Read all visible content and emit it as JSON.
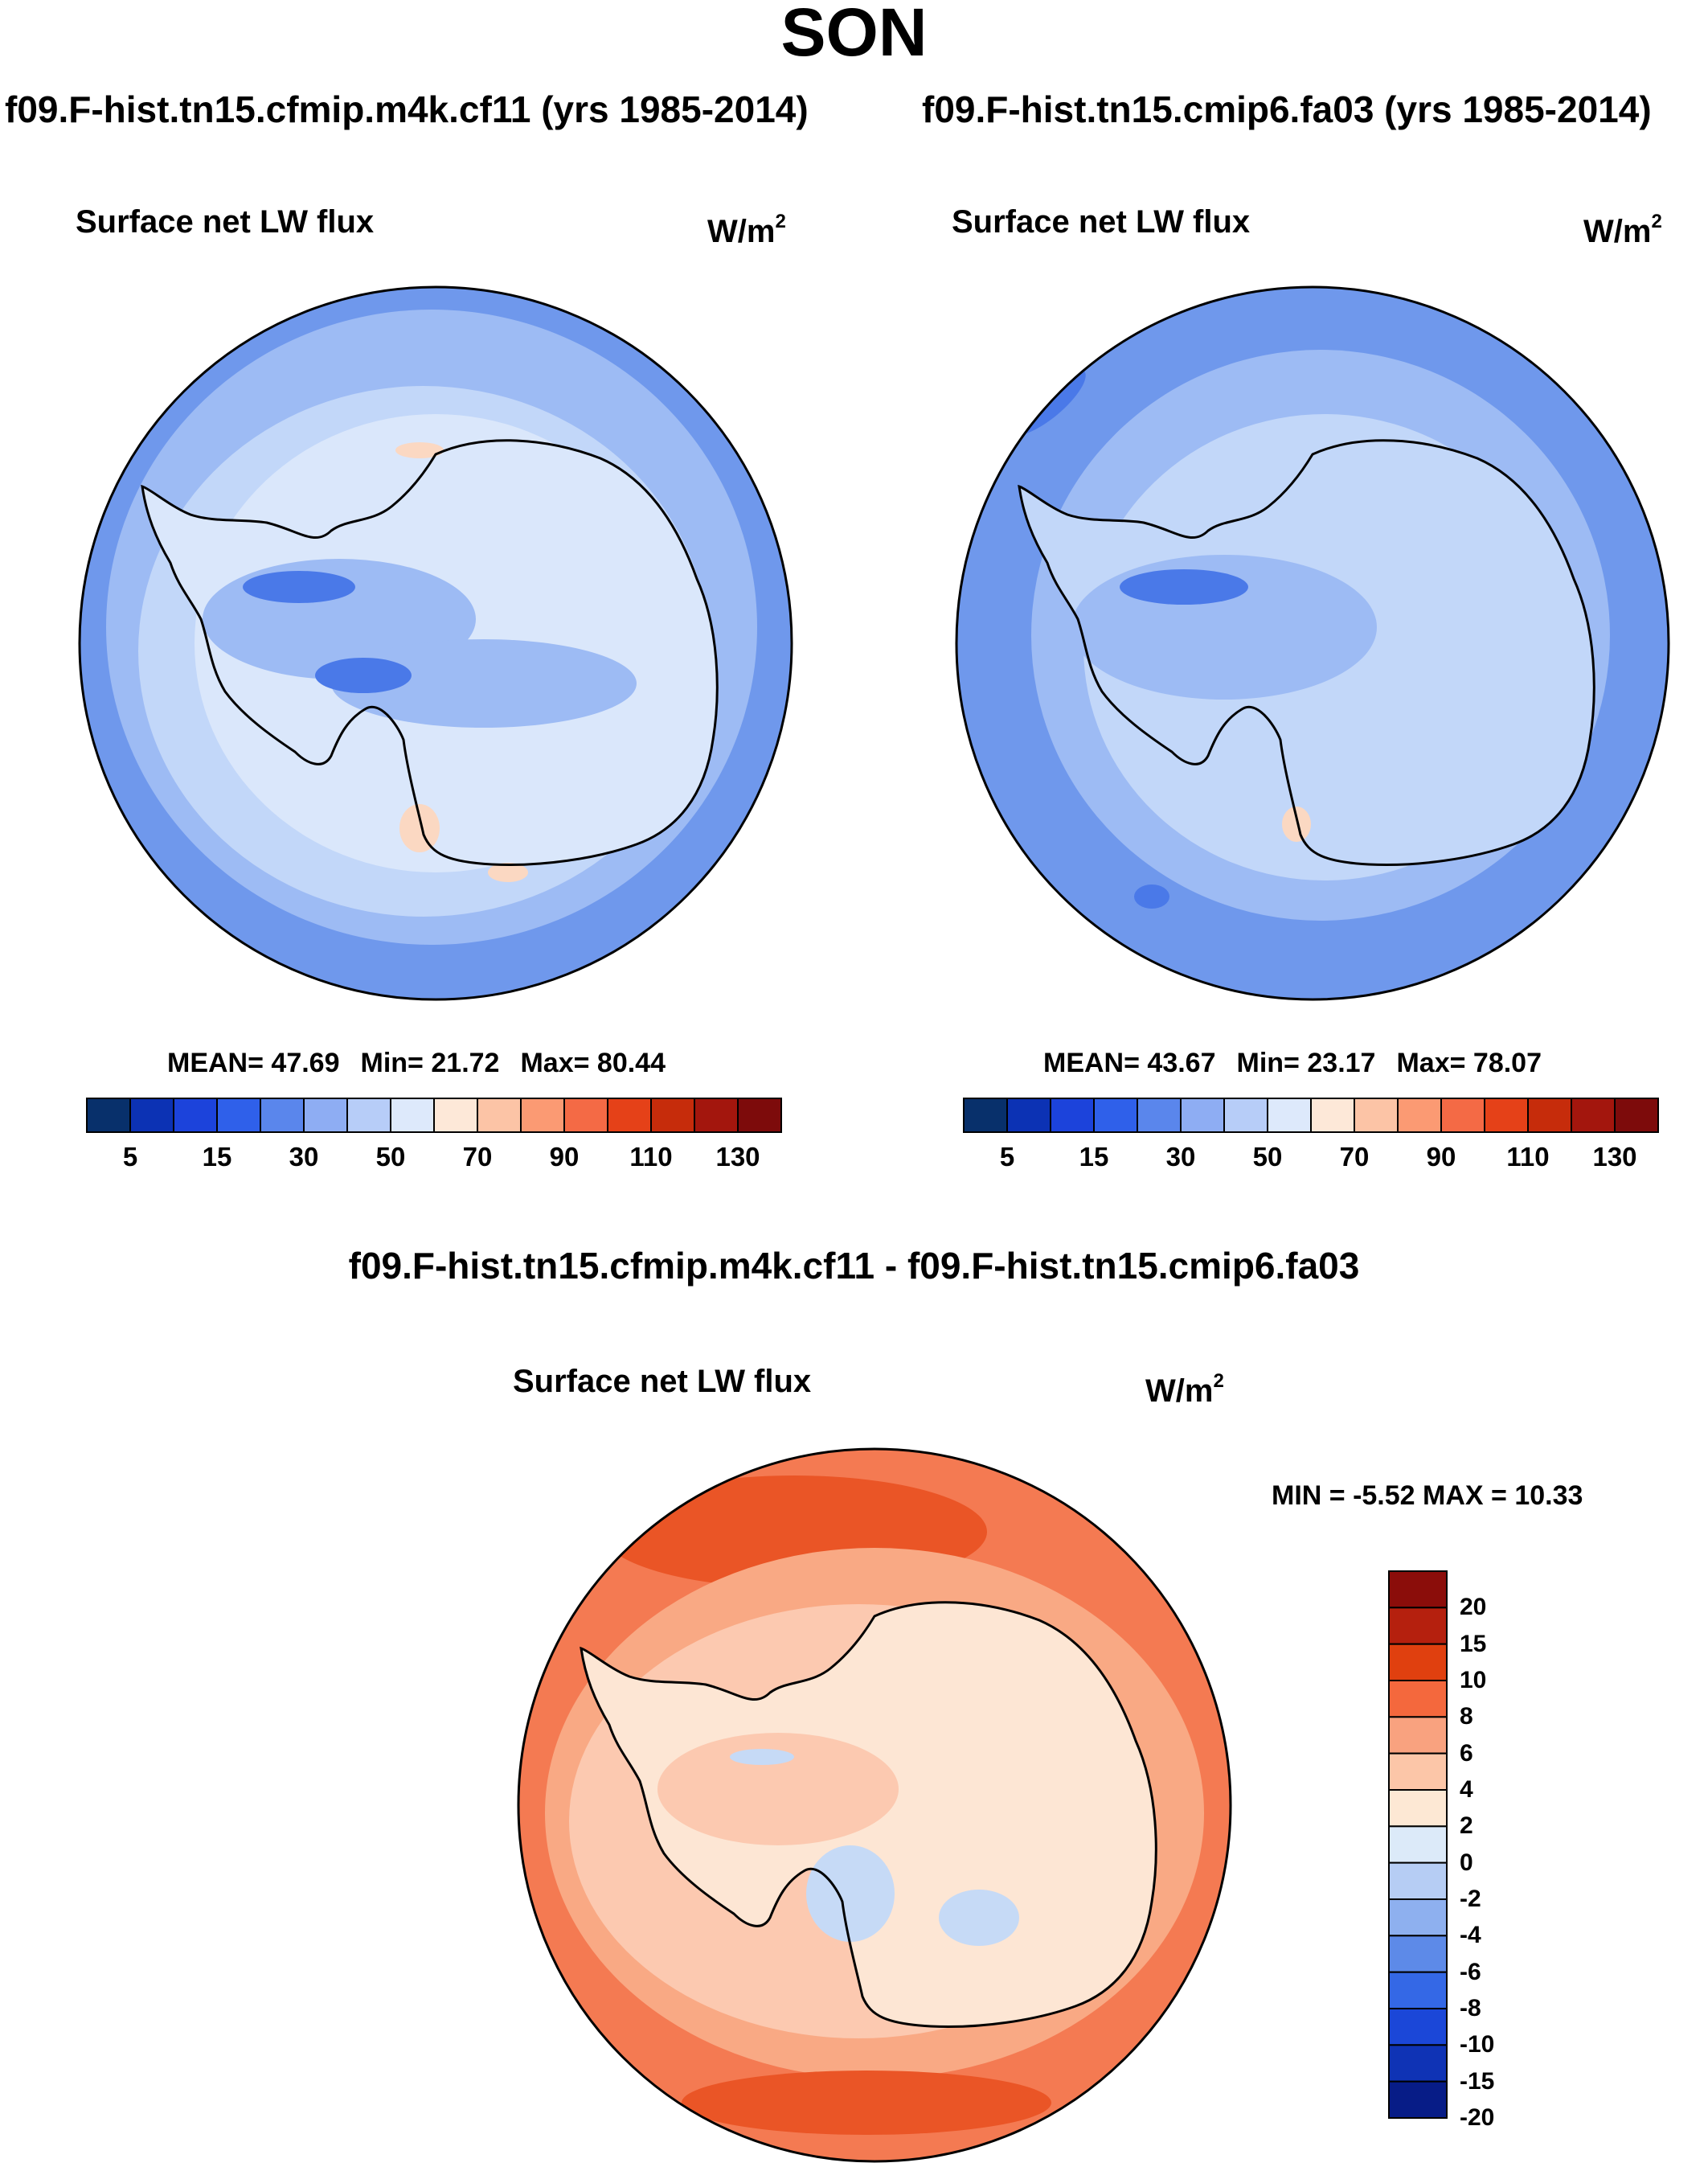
{
  "title": "SON",
  "left_panel": {
    "run_title": "f09.F-hist.tn15.cfmip.m4k.cf11 (yrs 1985-2014)",
    "label": "Surface net LW flux",
    "units": "W/m",
    "units_exp": "2",
    "stats": {
      "mean_label": "MEAN=",
      "mean": "47.69",
      "min_label": "Min=",
      "min": "21.72",
      "max_label": "Max=",
      "max": "80.44"
    }
  },
  "right_panel": {
    "run_title": "f09.F-hist.tn15.cmip6.fa03 (yrs 1985-2014)",
    "label": "Surface net LW flux",
    "units": "W/m",
    "units_exp": "2",
    "stats": {
      "mean_label": "MEAN=",
      "mean": "43.67",
      "min_label": "Min=",
      "min": "23.17",
      "max_label": "Max=",
      "max": "78.07"
    }
  },
  "abs_colorbar": {
    "colors": [
      "#08306b",
      "#0c32b4",
      "#1c43db",
      "#2f60ea",
      "#5a86ec",
      "#8eadf3",
      "#b7cdf8",
      "#dde9fb",
      "#fde8d8",
      "#fcc4a6",
      "#fb9a73",
      "#f46a45",
      "#e54118",
      "#c62c0b",
      "#a3160d",
      "#7d0b0b"
    ],
    "tick_labels": [
      "5",
      "15",
      "30",
      "50",
      "70",
      "90",
      "110",
      "130"
    ]
  },
  "diff_panel": {
    "title": "f09.F-hist.tn15.cfmip.m4k.cf11 - f09.F-hist.tn15.cmip6.fa03",
    "label": "Surface net LW flux",
    "units": "W/m",
    "units_exp": "2",
    "stats": {
      "min_label": "MIN =",
      "min": "-5.52",
      "max_label": "MAX =",
      "max": "10.33"
    }
  },
  "diff_colorbar": {
    "colors_top_to_bottom": [
      "#8b0d0a",
      "#b5200e",
      "#e0400f",
      "#f4683d",
      "#f9a27f",
      "#fcc6a8",
      "#fde8d4",
      "#dceaf9",
      "#b6cdf4",
      "#8eb0ef",
      "#5d8ae8",
      "#3468e6",
      "#1b47d8",
      "#0f33b5",
      "#071c87"
    ],
    "tick_labels": [
      "20",
      "15",
      "10",
      "8",
      "6",
      "4",
      "2",
      "0",
      "-2",
      "-4",
      "-6",
      "-8",
      "-10",
      "-15",
      "-20"
    ]
  },
  "map_colors": {
    "abs_ocean_outer": "#6f98ec",
    "abs_ocean_mid": "#9dbbf4",
    "abs_ocean_inner": "#c2d7f9",
    "abs_ice": "#dae7fb",
    "abs_low": "#4a79e8",
    "abs_warm": "#fbd8c2",
    "diff_outer": "#f47a52",
    "diff_strong": "#ea5526",
    "diff_mid": "#f9a984",
    "diff_light": "#fcc9b0",
    "diff_ice": "#fde6d4",
    "diff_neg": "#c6daf6",
    "coast": "#000000"
  }
}
